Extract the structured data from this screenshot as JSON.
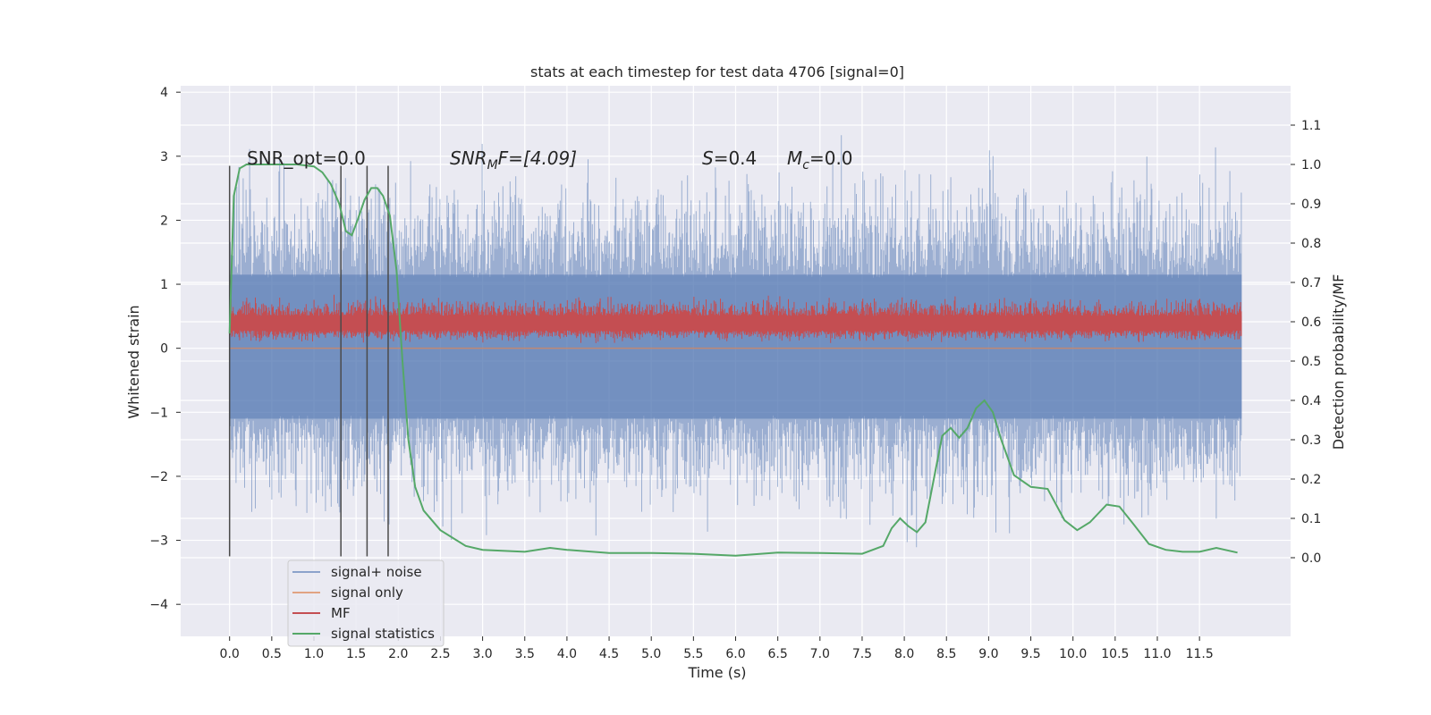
{
  "chart_data": {
    "type": "line",
    "title": "stats at each timestep for test data 4706 [signal=0]",
    "xlabel": "Time (s)",
    "ylabel_left": "Whitened strain",
    "ylabel_right": "Detection probability/MF",
    "xlim": [
      -0.58,
      12.58
    ],
    "ylim_left": [
      -4.5,
      4.1
    ],
    "ylim_right": [
      -0.2,
      1.2
    ],
    "x_ticks": [
      "0.0",
      "0.5",
      "1.0",
      "1.5",
      "2.0",
      "2.5",
      "3.0",
      "3.5",
      "4.0",
      "4.5",
      "5.0",
      "5.5",
      "6.0",
      "6.5",
      "7.0",
      "7.5",
      "8.0",
      "8.5",
      "9.0",
      "9.5",
      "10.0",
      "10.5",
      "11.0",
      "11.5"
    ],
    "y_ticks_left": [
      "4",
      "3",
      "2",
      "1",
      "0",
      "−1",
      "−2",
      "−3",
      "−4"
    ],
    "y_ticks_right": [
      "1.1",
      "1.0",
      "0.9",
      "0.8",
      "0.7",
      "0.6",
      "0.5",
      "0.4",
      "0.3",
      "0.2",
      "0.1",
      "0.0"
    ],
    "grid": true,
    "legend_position": "lower-left",
    "annotations": {
      "snr_opt": "SNR_opt=0.0",
      "snr_mf_prefix": "SNR",
      "snr_mf_sub": "M",
      "snr_mf_suffix": "F=[4.09]",
      "s_sym": "S",
      "s_val": "=0.4",
      "mc_sym": "M",
      "mc_sub": "c",
      "mc_val": "=0.0"
    },
    "vertical_markers": [
      0.0,
      1.32,
      1.63,
      1.88
    ],
    "series": [
      {
        "name": "signal+ noise",
        "color": "#4c72b0",
        "axis": "left",
        "style": "noise band",
        "approx_range": [
          -3.3,
          3.6
        ]
      },
      {
        "name": "signal only",
        "color": "#dd8452",
        "axis": "left",
        "x": [
          0.0,
          12.0
        ],
        "y": [
          0.0,
          0.0
        ]
      },
      {
        "name": "MF",
        "color": "#c44e52",
        "axis": "right",
        "style": "noise band",
        "approx_range": [
          0.53,
          0.69
        ]
      },
      {
        "name": "signal statistics",
        "color": "#55a868",
        "axis": "right",
        "x": [
          0.0,
          0.05,
          0.12,
          0.2,
          0.3,
          0.5,
          0.8,
          1.0,
          1.1,
          1.2,
          1.3,
          1.38,
          1.45,
          1.52,
          1.6,
          1.68,
          1.75,
          1.82,
          1.9,
          1.98,
          2.05,
          2.12,
          2.2,
          2.3,
          2.5,
          2.8,
          3.0,
          3.5,
          3.8,
          4.0,
          4.5,
          5.0,
          5.5,
          6.0,
          6.5,
          7.0,
          7.5,
          7.75,
          7.85,
          7.95,
          8.05,
          8.15,
          8.25,
          8.35,
          8.45,
          8.55,
          8.65,
          8.75,
          8.85,
          8.95,
          9.05,
          9.15,
          9.3,
          9.5,
          9.7,
          9.9,
          10.05,
          10.2,
          10.4,
          10.55,
          10.7,
          10.9,
          11.1,
          11.3,
          11.5,
          11.7,
          11.95
        ],
        "y": [
          0.57,
          0.92,
          0.99,
          1.0,
          1.0,
          1.0,
          1.0,
          0.995,
          0.98,
          0.95,
          0.9,
          0.83,
          0.82,
          0.86,
          0.91,
          0.94,
          0.94,
          0.92,
          0.87,
          0.73,
          0.5,
          0.3,
          0.18,
          0.12,
          0.07,
          0.03,
          0.02,
          0.015,
          0.025,
          0.02,
          0.012,
          0.012,
          0.01,
          0.005,
          0.013,
          0.012,
          0.01,
          0.03,
          0.075,
          0.1,
          0.08,
          0.065,
          0.09,
          0.2,
          0.31,
          0.33,
          0.305,
          0.33,
          0.38,
          0.4,
          0.37,
          0.3,
          0.21,
          0.18,
          0.175,
          0.095,
          0.07,
          0.09,
          0.135,
          0.13,
          0.09,
          0.035,
          0.02,
          0.015,
          0.015,
          0.025,
          0.013
        ]
      }
    ]
  }
}
